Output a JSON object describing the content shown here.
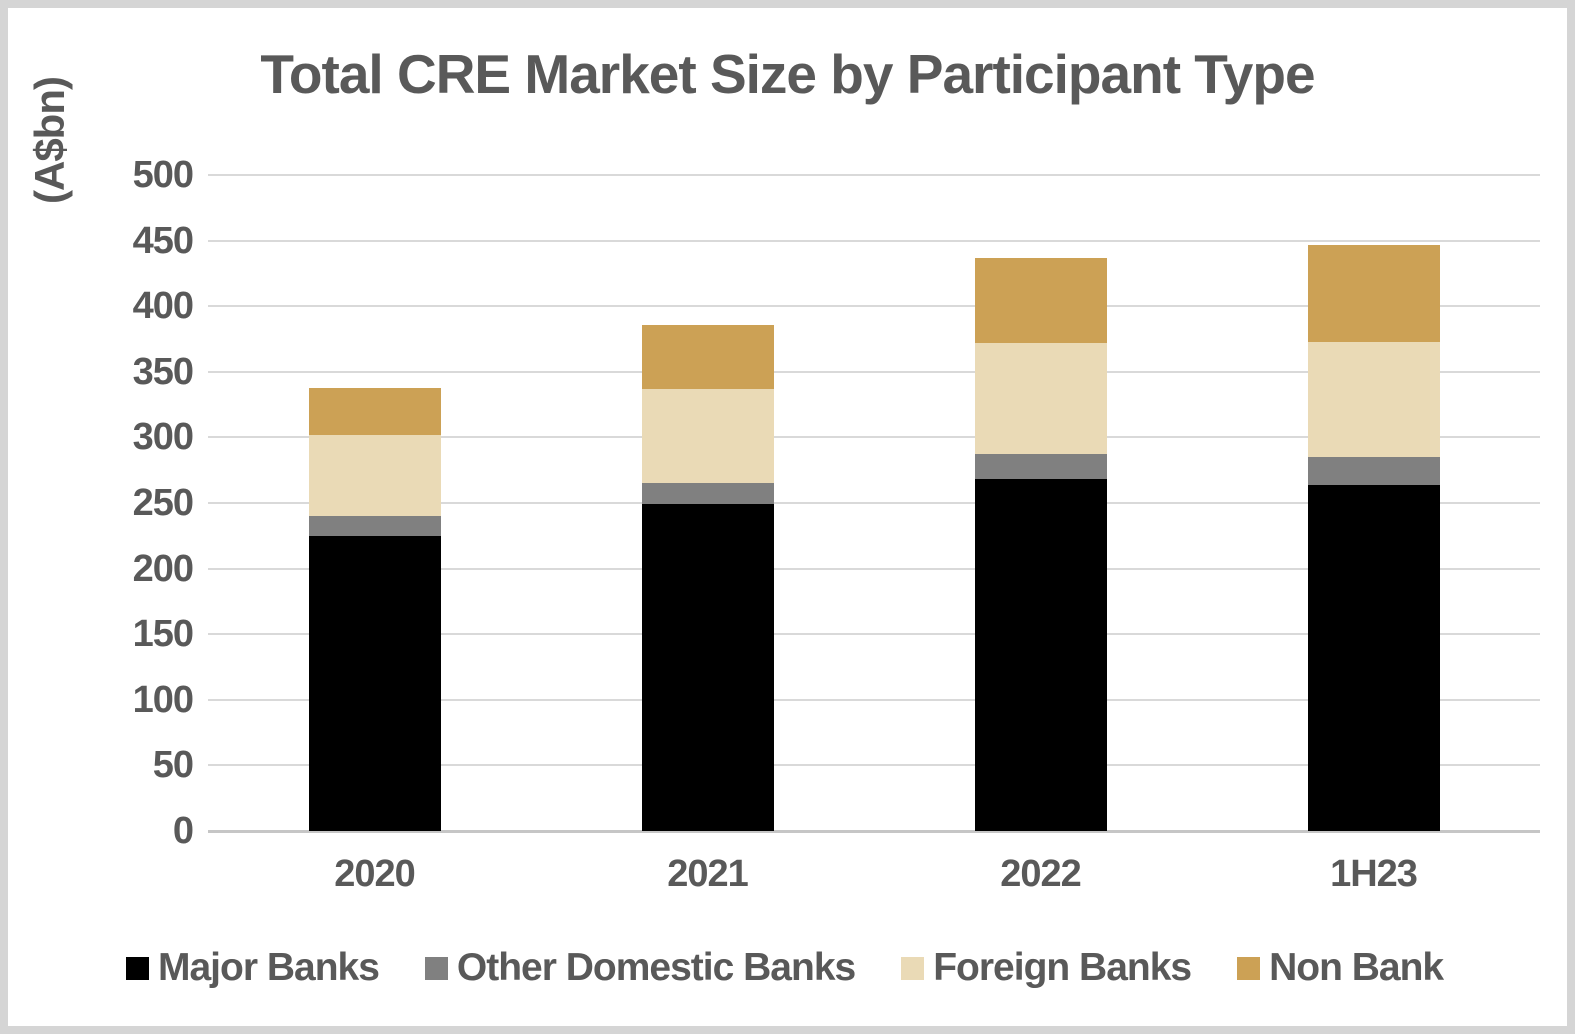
{
  "title": "Total CRE Market Size by Participant Type",
  "chart_data": {
    "type": "bar",
    "stacked": true,
    "title": "Total CRE Market Size by Participant Type",
    "ylabel": "(A$bn)",
    "xlabel": "",
    "categories": [
      "2020",
      "2021",
      "2022",
      "1H23"
    ],
    "series": [
      {
        "name": "Major Banks",
        "color": "#000000",
        "values": [
          225,
          249,
          268,
          264
        ]
      },
      {
        "name": "Other Domestic Banks",
        "color": "#808080",
        "values": [
          15,
          16,
          19,
          21
        ]
      },
      {
        "name": "Foreign Banks",
        "color": "#EADAB6",
        "values": [
          62,
          72,
          85,
          88
        ]
      },
      {
        "name": "Non Bank",
        "color": "#CCA155",
        "values": [
          36,
          49,
          65,
          74
        ]
      }
    ],
    "totals": [
      338,
      386,
      437,
      447
    ],
    "ylim": [
      0,
      500
    ],
    "ytick_step": 50,
    "yticks": [
      0,
      50,
      100,
      150,
      200,
      250,
      300,
      350,
      400,
      450,
      500
    ],
    "grid": true,
    "legend_position": "bottom"
  },
  "colors": {
    "text": "#595959",
    "gridline": "#d9d9d9",
    "axis_line": "#c6c6c6",
    "frame_border": "#d5d5d5",
    "background": "#ffffff"
  }
}
